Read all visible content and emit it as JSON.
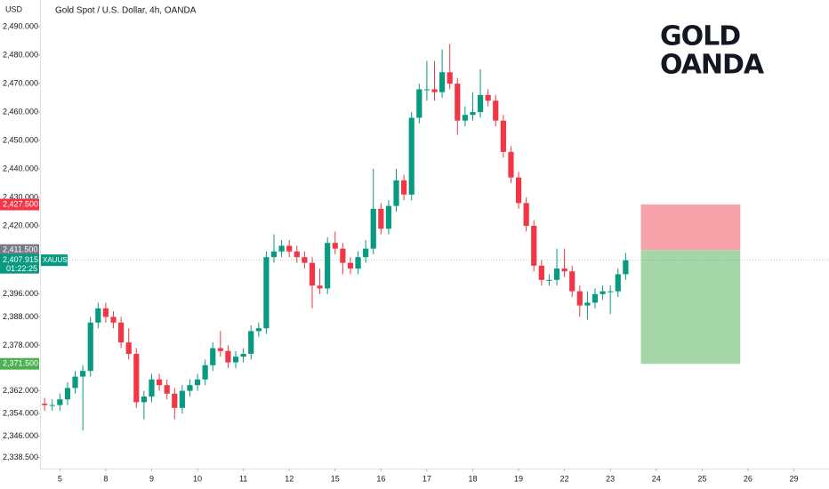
{
  "chart_data": {
    "type": "candlestick",
    "title": "Gold Spot / U.S. Dollar, 4h, OANDA",
    "currency": "USD",
    "symbol": "XAUUSD",
    "countdown": "01:22:25",
    "watermark": [
      "GOLD",
      "OANDA"
    ],
    "up_color": "#089981",
    "down_color": "#f23645",
    "x": [
      0,
      1,
      2,
      3,
      4,
      5,
      6,
      7,
      8,
      9,
      10,
      11,
      12,
      13,
      14,
      15,
      16,
      17,
      18,
      19,
      20,
      21,
      22,
      23,
      24,
      25,
      26,
      27,
      28,
      29,
      30,
      31,
      32,
      33,
      34,
      35,
      36,
      37,
      38,
      39,
      40,
      41,
      42,
      43,
      44,
      45,
      46,
      47,
      48,
      49,
      50,
      51,
      52,
      53,
      54,
      55,
      56,
      57,
      58,
      59,
      60,
      61,
      62,
      63,
      64,
      65,
      66,
      67,
      68,
      69,
      70,
      71,
      72,
      73,
      74,
      75,
      76
    ],
    "open": [
      2357.5,
      2357,
      2357,
      2359,
      2363,
      2367,
      2369,
      2386,
      2391,
      2388,
      2386,
      2379,
      2375,
      2358,
      2360,
      2366,
      2364,
      2361,
      2356,
      2362,
      2364,
      2366,
      2371,
      2377,
      2376,
      2372,
      2374,
      2375,
      2383,
      2384,
      2409,
      2411,
      2413,
      2411,
      2409,
      2407,
      2399,
      2398,
      2414,
      2412,
      2407,
      2405,
      2409,
      2412,
      2426,
      2419,
      2427,
      2436,
      2431,
      2458,
      2468,
      2468,
      2467,
      2474,
      2470,
      2457,
      2459,
      2460,
      2466,
      2464,
      2457,
      2446,
      2437,
      2428,
      2420,
      2406,
      2401,
      2401,
      2405,
      2404,
      2397,
      2392,
      2393,
      2396,
      2397,
      2397,
      2403
    ],
    "high": [
      2359.5,
      2359,
      2361,
      2365,
      2369,
      2371,
      2388,
      2393,
      2393,
      2390,
      2388,
      2384,
      2377,
      2362,
      2368,
      2368,
      2366,
      2363,
      2364,
      2366,
      2368,
      2373,
      2379,
      2383,
      2378,
      2376,
      2377,
      2385,
      2386,
      2411,
      2417,
      2415,
      2415,
      2413,
      2411,
      2409,
      2405,
      2416,
      2418,
      2414,
      2409,
      2411,
      2415,
      2440,
      2428,
      2429,
      2440,
      2438,
      2460,
      2470,
      2478,
      2478,
      2482,
      2484,
      2472,
      2462,
      2467,
      2475,
      2468,
      2466,
      2459,
      2448,
      2439,
      2430,
      2422,
      2408,
      2403,
      2412,
      2412,
      2406,
      2399,
      2397,
      2398,
      2399,
      2399,
      2405,
      2410.5
    ],
    "low": [
      2355,
      2355,
      2355,
      2357,
      2361,
      2348,
      2367,
      2384,
      2386,
      2384,
      2377,
      2373,
      2356,
      2352,
      2358,
      2362,
      2359,
      2352,
      2354,
      2360,
      2362,
      2364,
      2369,
      2374,
      2370,
      2370,
      2372,
      2373,
      2381,
      2382,
      2407,
      2409,
      2409,
      2407,
      2405,
      2391,
      2396,
      2396,
      2410,
      2403,
      2403,
      2403,
      2407,
      2410,
      2417,
      2417,
      2425,
      2429,
      2429,
      2456,
      2464,
      2464,
      2465,
      2468,
      2452,
      2455,
      2457,
      2458,
      2462,
      2455,
      2444,
      2435,
      2426,
      2418,
      2404,
      2399,
      2399,
      2399,
      2402,
      2395,
      2388,
      2387,
      2391,
      2394,
      2389,
      2395,
      2401
    ],
    "close": [
      2357,
      2357,
      2359,
      2363,
      2367,
      2369,
      2386,
      2391,
      2388,
      2386,
      2379,
      2375,
      2358,
      2360,
      2366,
      2364,
      2361,
      2356,
      2362,
      2364,
      2366,
      2371,
      2377,
      2376,
      2372,
      2374,
      2375,
      2383,
      2384,
      2409,
      2411,
      2413,
      2411,
      2409,
      2407,
      2399,
      2398,
      2414,
      2412,
      2407,
      2405,
      2409,
      2412,
      2426,
      2419,
      2427,
      2436,
      2431,
      2458,
      2468,
      2468,
      2467,
      2474,
      2470,
      2457,
      2459,
      2460,
      2466,
      2464,
      2457,
      2446,
      2437,
      2428,
      2420,
      2406,
      2401,
      2401,
      2405,
      2404,
      2397,
      2392,
      2393,
      2396,
      2397,
      2397,
      2403,
      2407.915
    ],
    "xlim": [
      -0.6,
      102.6
    ],
    "xticks": [
      {
        "value": 2,
        "label": "5"
      },
      {
        "value": 8,
        "label": "8"
      },
      {
        "value": 14,
        "label": "9"
      },
      {
        "value": 20,
        "label": "10"
      },
      {
        "value": 26,
        "label": "11"
      },
      {
        "value": 32,
        "label": "12"
      },
      {
        "value": 38,
        "label": "15"
      },
      {
        "value": 44,
        "label": "16"
      },
      {
        "value": 50,
        "label": "17"
      },
      {
        "value": 56,
        "label": "18"
      },
      {
        "value": 62,
        "label": "19"
      },
      {
        "value": 68,
        "label": "22"
      },
      {
        "value": 74,
        "label": "23"
      },
      {
        "value": 80,
        "label": "24"
      },
      {
        "value": 86,
        "label": "25"
      },
      {
        "value": 92,
        "label": "26"
      },
      {
        "value": 98,
        "label": "29"
      }
    ],
    "ylim": [
      2335.3,
      2499.4
    ],
    "yticks": [
      {
        "value": 2490,
        "label": "2,490.000"
      },
      {
        "value": 2480,
        "label": "2,480.000"
      },
      {
        "value": 2470,
        "label": "2,470.000"
      },
      {
        "value": 2460,
        "label": "2,460.000"
      },
      {
        "value": 2450,
        "label": "2,450.000"
      },
      {
        "value": 2440,
        "label": "2,440.000"
      },
      {
        "value": 2430,
        "label": "2,430.000"
      },
      {
        "value": 2420,
        "label": "2,420.000"
      },
      {
        "value": 2396,
        "label": "2,396.000"
      },
      {
        "value": 2388,
        "label": "2,388.000"
      },
      {
        "value": 2378,
        "label": "2,378.000"
      },
      {
        "value": 2362,
        "label": "2,362.000"
      },
      {
        "value": 2354,
        "label": "2,354.000"
      },
      {
        "value": 2346,
        "label": "2,346.000"
      },
      {
        "value": 2338.5,
        "label": "2,338.500"
      }
    ],
    "price_tags": [
      {
        "value": 2427.5,
        "label": "2,427.500",
        "color": "#f23645"
      },
      {
        "value": 2411.5,
        "label": "2,411.500",
        "color": "#787b86"
      },
      {
        "value": 2407.915,
        "label": "2,407.915",
        "color": "#089981"
      },
      {
        "value": 2371.5,
        "label": "2,371.500",
        "color": "#4caf50"
      }
    ],
    "position": {
      "x": [
        78,
        91
      ],
      "stop": 2427.5,
      "entry": 2411.5,
      "target": 2371.5,
      "stop_color": "#f7a1a8",
      "target_color": "#a5d6a7"
    }
  }
}
